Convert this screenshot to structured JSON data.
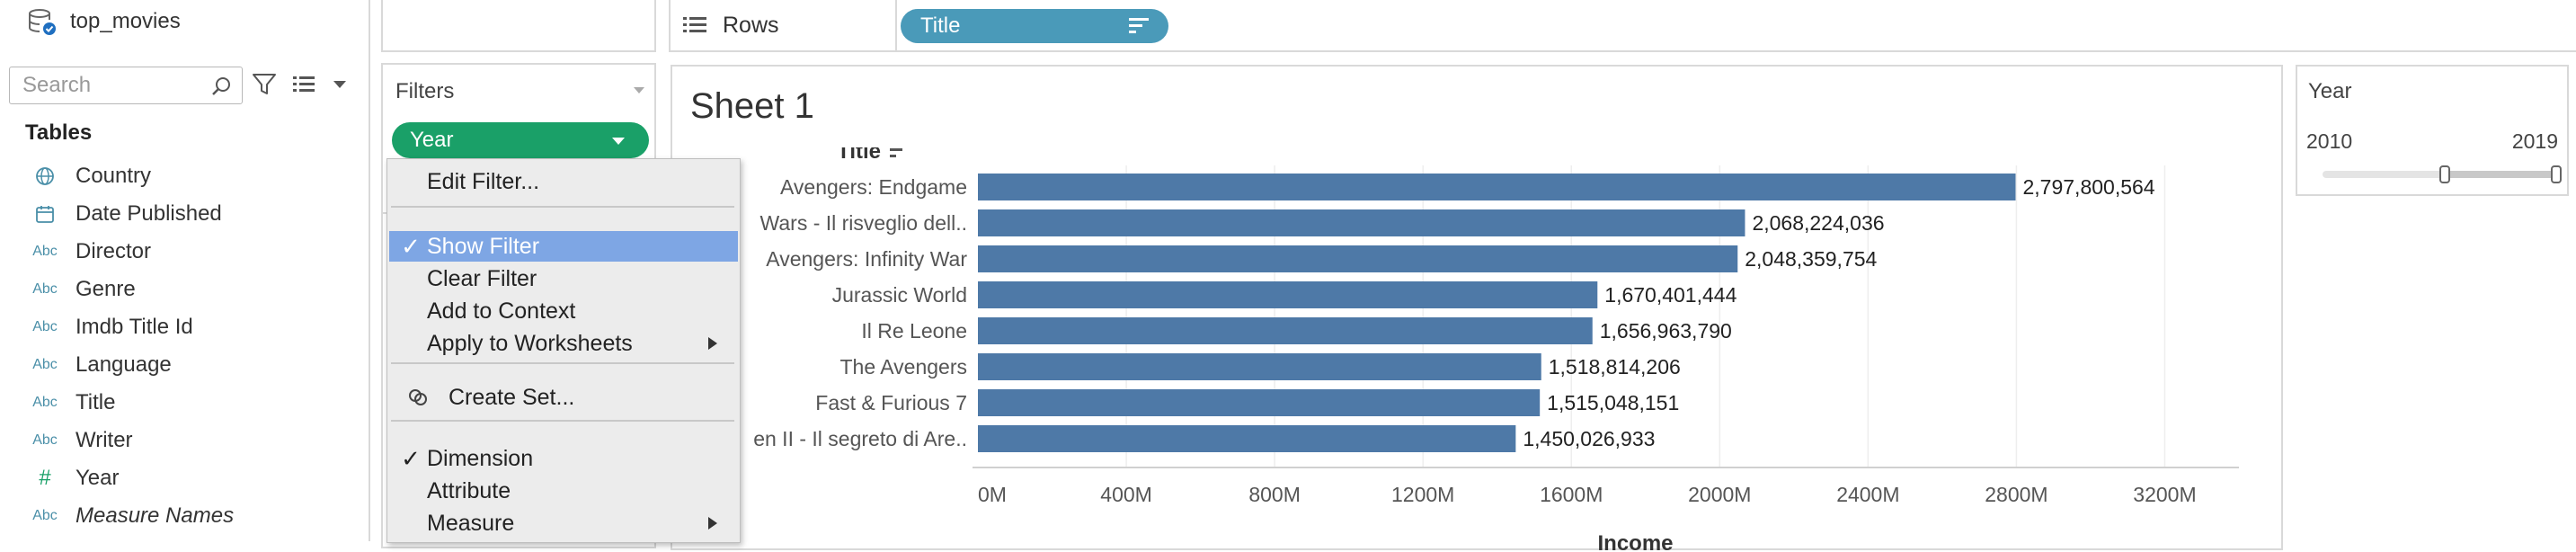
{
  "data_pane": {
    "datasource": "top_movies",
    "search_placeholder": "Search",
    "tables_heading": "Tables",
    "fields": [
      {
        "icon": "globe-icon",
        "label": "Country"
      },
      {
        "icon": "calendar-icon",
        "label": "Date Published"
      },
      {
        "icon": "abc",
        "label": "Director"
      },
      {
        "icon": "abc",
        "label": "Genre"
      },
      {
        "icon": "abc",
        "label": "Imdb Title Id"
      },
      {
        "icon": "abc",
        "label": "Language"
      },
      {
        "icon": "abc",
        "label": "Title"
      },
      {
        "icon": "abc",
        "label": "Writer"
      },
      {
        "icon": "hash",
        "label": "Year"
      },
      {
        "icon": "abc",
        "label": "Measure Names"
      }
    ],
    "abc_glyph": "Abc",
    "hash_glyph": "#"
  },
  "rows_shelf": {
    "label": "Rows",
    "pill": "Title"
  },
  "filters": {
    "title": "Filters",
    "pill": "Year"
  },
  "context_menu": {
    "items": [
      {
        "label": "Edit Filter...",
        "checked": false,
        "selected": false,
        "submenu": false
      },
      {
        "label": "Show Filter",
        "checked": true,
        "selected": true,
        "submenu": false
      },
      {
        "label": "Clear Filter",
        "checked": false,
        "selected": false,
        "submenu": false
      },
      {
        "label": "Add to Context",
        "checked": false,
        "selected": false,
        "submenu": false
      },
      {
        "label": "Apply to Worksheets",
        "checked": false,
        "selected": false,
        "submenu": true
      },
      {
        "label": "Create Set...",
        "checked": false,
        "selected": false,
        "submenu": false
      },
      {
        "label": "Dimension",
        "checked": true,
        "selected": false,
        "submenu": false
      },
      {
        "label": "Attribute",
        "checked": false,
        "selected": false,
        "submenu": false
      },
      {
        "label": "Measure",
        "checked": false,
        "selected": false,
        "submenu": true
      }
    ],
    "check_glyph": "✓"
  },
  "sheet": {
    "title": "Sheet 1"
  },
  "year_filter": {
    "title": "Year",
    "min_label": "2010",
    "max_label": "2019"
  },
  "colors": {
    "bar": "#4e79a7",
    "pill_title": "#4a9ab9",
    "pill_year": "#1aa068",
    "menu_highlight": "#7ea6e4"
  },
  "chart_data": {
    "type": "bar",
    "orientation": "horizontal",
    "row_header": "Title",
    "xlabel": "Income",
    "categories": [
      "Avengers: Endgame",
      "Wars - Il risveglio dell..",
      "Avengers: Infinity War",
      "Jurassic World",
      "Il Re Leone",
      "The Avengers",
      "Fast & Furious 7",
      "en II - Il segreto di Are.."
    ],
    "values": [
      2797800564,
      2068224036,
      2048359754,
      1670401444,
      1656963790,
      1518814206,
      1515048151,
      1450026933
    ],
    "value_labels": [
      "2,797,800,564",
      "2,068,224,036",
      "2,048,359,754",
      "1,670,401,444",
      "1,656,963,790",
      "1,518,814,206",
      "1,515,048,151",
      "1,450,026,933"
    ],
    "xticks": [
      0,
      400000000,
      800000000,
      1200000000,
      1600000000,
      2000000000,
      2400000000,
      2800000000,
      3200000000
    ],
    "xtick_labels": [
      "0M",
      "400M",
      "800M",
      "1200M",
      "1600M",
      "2000M",
      "2400M",
      "2800M",
      "3200M"
    ],
    "xlim": [
      0,
      3400000000
    ],
    "grid": "vertical"
  }
}
